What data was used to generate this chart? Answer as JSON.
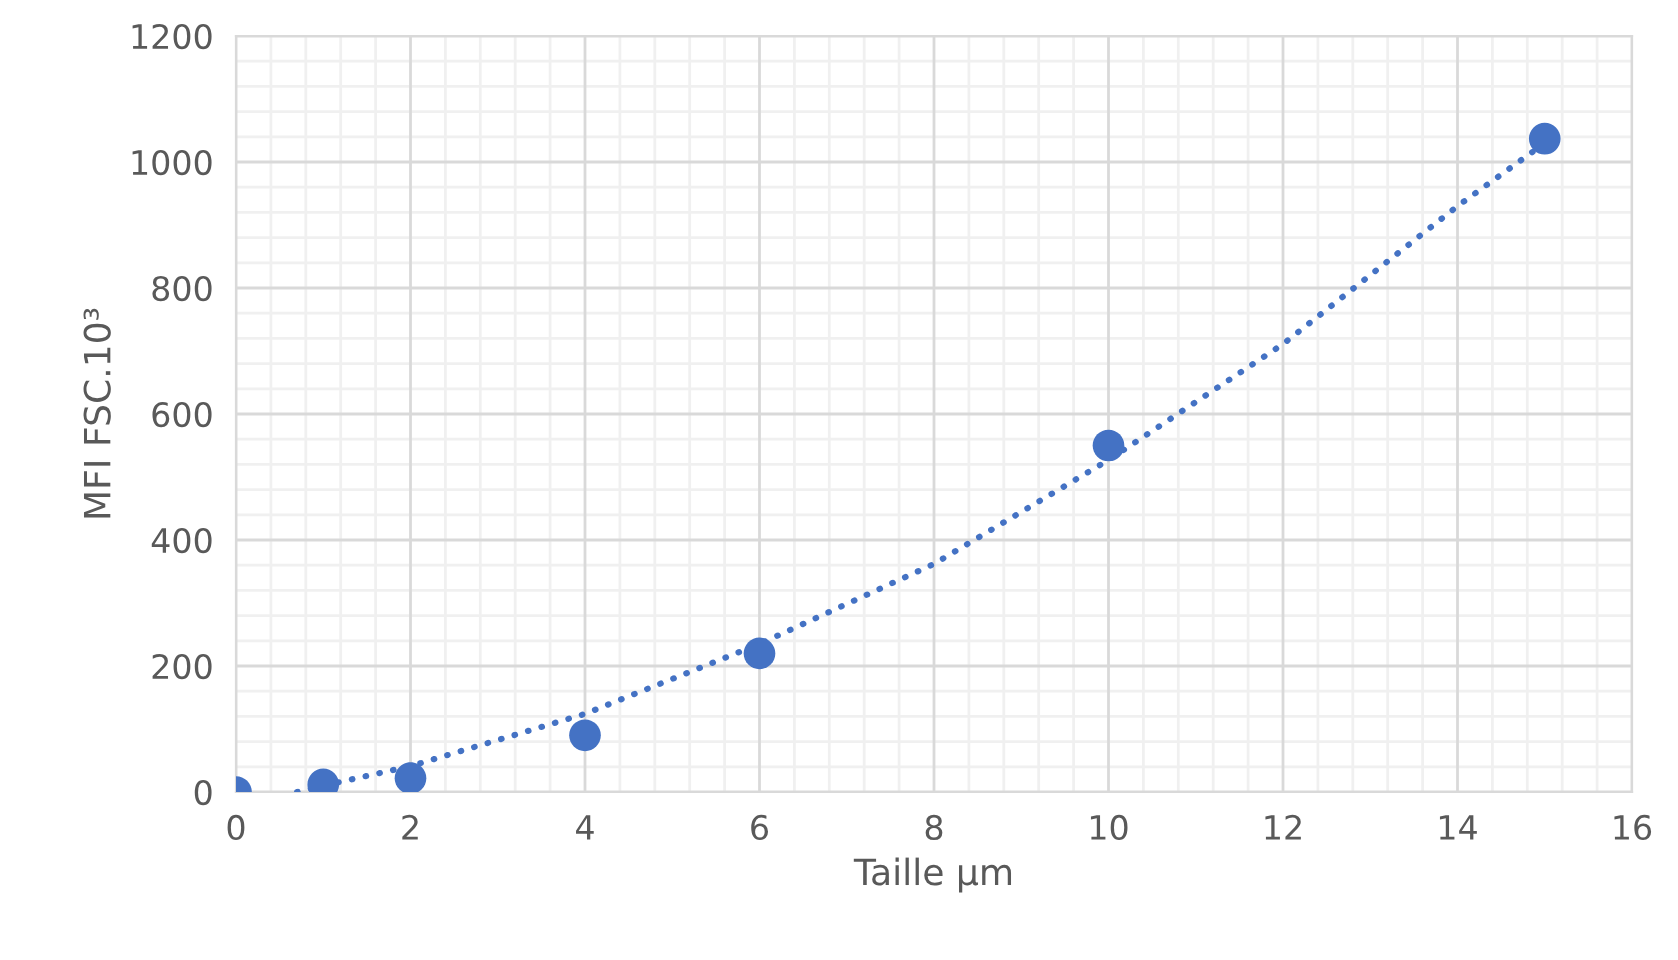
{
  "chart_data": {
    "type": "scatter",
    "xlabel": "Taille µm",
    "ylabel": "MFI FSC.10³",
    "xlim": [
      0,
      16
    ],
    "ylim": [
      0,
      1200
    ],
    "xticks": [
      0,
      {
        "value": 0.4,
        "label": null
      },
      {
        "value": 0.8,
        "label": null
      },
      {
        "value": 1.2,
        "label": null
      },
      {
        "value": 1.6,
        "label": null
      },
      2,
      {
        "value": 2.4,
        "label": null
      },
      {
        "value": 2.8,
        "label": null
      },
      {
        "value": 3.2,
        "label": null
      },
      {
        "value": 3.6,
        "label": null
      },
      4,
      {
        "value": 4.4,
        "label": null
      },
      {
        "value": 4.8,
        "label": null
      },
      {
        "value": 5.2,
        "label": null
      },
      {
        "value": 5.6,
        "label": null
      },
      6,
      {
        "value": 6.4,
        "label": null
      },
      {
        "value": 6.8,
        "label": null
      },
      {
        "value": 7.2,
        "label": null
      },
      {
        "value": 7.6,
        "label": null
      },
      8,
      {
        "value": 8.4,
        "label": null
      },
      {
        "value": 8.8,
        "label": null
      },
      {
        "value": 9.2,
        "label": null
      },
      {
        "value": 9.6,
        "label": null
      },
      10,
      {
        "value": 10.4,
        "label": null
      },
      {
        "value": 10.8,
        "label": null
      },
      {
        "value": 11.2,
        "label": null
      },
      {
        "value": 11.6,
        "label": null
      },
      12,
      {
        "value": 12.4,
        "label": null
      },
      {
        "value": 12.8,
        "label": null
      },
      {
        "value": 13.2,
        "label": null
      },
      {
        "value": 13.6,
        "label": null
      },
      14,
      {
        "value": 14.4,
        "label": null
      },
      {
        "value": 14.8,
        "label": null
      },
      {
        "value": 15.2,
        "label": null
      },
      {
        "value": 15.6,
        "label": null
      },
      16
    ],
    "yticks": [
      0,
      {
        "value": 40,
        "label": null
      },
      {
        "value": 80,
        "label": null
      },
      {
        "value": 120,
        "label": null
      },
      {
        "value": 160,
        "label": null
      },
      200,
      {
        "value": 240,
        "label": null
      },
      {
        "value": 280,
        "label": null
      },
      {
        "value": 320,
        "label": null
      },
      {
        "value": 360,
        "label": null
      },
      400,
      {
        "value": 440,
        "label": null
      },
      {
        "value": 480,
        "label": null
      },
      {
        "value": 520,
        "label": null
      },
      {
        "value": 560,
        "label": null
      },
      600,
      {
        "value": 640,
        "label": null
      },
      {
        "value": 680,
        "label": null
      },
      {
        "value": 720,
        "label": null
      },
      {
        "value": 760,
        "label": null
      },
      800,
      {
        "value": 840,
        "label": null
      },
      {
        "value": 880,
        "label": null
      },
      {
        "value": 920,
        "label": null
      },
      {
        "value": 960,
        "label": null
      },
      1000,
      {
        "value": 1040,
        "label": null
      },
      {
        "value": 1080,
        "label": null
      },
      {
        "value": 1120,
        "label": null
      },
      {
        "value": 1160,
        "label": null
      },
      1200
    ],
    "grid": true,
    "legend": false,
    "series": [
      {
        "type": "line",
        "color": "#4472c4",
        "line_style": "dotted",
        "marker": "none",
        "x": [
          0.7,
          1,
          2,
          4,
          6,
          8,
          10,
          12,
          14,
          15
        ],
        "values": [
          0,
          10,
          41,
          124,
          235,
          362,
          527,
          711,
          930,
          1030
        ]
      },
      {
        "color": "#4472c4",
        "marker": "circle",
        "x": [
          0,
          1,
          2,
          4,
          6,
          10,
          15
        ],
        "values": [
          0,
          12,
          22,
          90,
          220,
          550,
          1037
        ]
      }
    ]
  }
}
